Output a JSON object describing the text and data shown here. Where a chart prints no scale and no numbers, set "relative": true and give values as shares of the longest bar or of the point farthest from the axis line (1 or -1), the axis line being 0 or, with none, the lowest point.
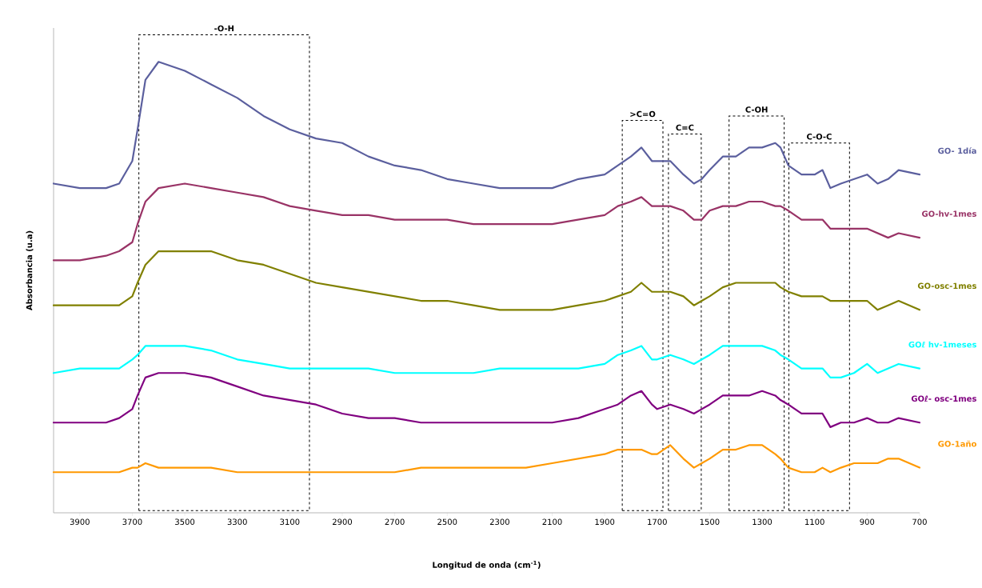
{
  "chart_data": {
    "type": "line",
    "xlabel": "Longitud de onda (cm$^{-1}$)",
    "ylabel": "Absorbancia (u.a)",
    "relative": true,
    "xlim": [
      4000,
      700
    ],
    "xticks": [
      3900,
      3700,
      3500,
      3300,
      3100,
      2900,
      2700,
      2500,
      2300,
      2100,
      1900,
      1700,
      1500,
      1300,
      1100,
      900,
      700
    ],
    "tick_labels": "x",
    "x": [
      4000,
      3900,
      3800,
      3750,
      3700,
      3680,
      3650,
      3600,
      3500,
      3400,
      3300,
      3200,
      3100,
      3000,
      2900,
      2800,
      2700,
      2600,
      2500,
      2400,
      2300,
      2200,
      2100,
      2000,
      1900,
      1850,
      1800,
      1760,
      1720,
      1700,
      1650,
      1600,
      1560,
      1530,
      1500,
      1450,
      1400,
      1350,
      1300,
      1250,
      1230,
      1200,
      1150,
      1100,
      1070,
      1040,
      1000,
      950,
      900,
      860,
      820,
      780,
      700
    ],
    "series": [
      {
        "name": "GO- 1día",
        "color": "#5b5f9e",
        "values": [
          0.73,
          0.72,
          0.72,
          0.73,
          0.78,
          0.85,
          0.96,
          1.0,
          0.98,
          0.95,
          0.92,
          0.88,
          0.85,
          0.83,
          0.82,
          0.79,
          0.77,
          0.76,
          0.74,
          0.73,
          0.72,
          0.72,
          0.72,
          0.74,
          0.75,
          0.77,
          0.79,
          0.81,
          0.78,
          0.78,
          0.78,
          0.75,
          0.73,
          0.74,
          0.76,
          0.79,
          0.79,
          0.81,
          0.81,
          0.82,
          0.81,
          0.77,
          0.75,
          0.75,
          0.76,
          0.72,
          0.73,
          0.74,
          0.75,
          0.73,
          0.74,
          0.76,
          0.75
        ]
      },
      {
        "name": "GO-hv-1mes",
        "color": "#993366",
        "values": [
          0.56,
          0.56,
          0.57,
          0.58,
          0.6,
          0.64,
          0.69,
          0.72,
          0.73,
          0.72,
          0.71,
          0.7,
          0.68,
          0.67,
          0.66,
          0.66,
          0.65,
          0.65,
          0.65,
          0.64,
          0.64,
          0.64,
          0.64,
          0.65,
          0.66,
          0.68,
          0.69,
          0.7,
          0.68,
          0.68,
          0.68,
          0.67,
          0.65,
          0.65,
          0.67,
          0.68,
          0.68,
          0.69,
          0.69,
          0.68,
          0.68,
          0.67,
          0.65,
          0.65,
          0.65,
          0.63,
          0.63,
          0.63,
          0.63,
          0.62,
          0.61,
          0.62,
          0.61
        ]
      },
      {
        "name": "GO-osc-1mes",
        "color": "#808000",
        "values": [
          0.46,
          0.46,
          0.46,
          0.46,
          0.48,
          0.51,
          0.55,
          0.58,
          0.58,
          0.58,
          0.56,
          0.55,
          0.53,
          0.51,
          0.5,
          0.49,
          0.48,
          0.47,
          0.47,
          0.46,
          0.45,
          0.45,
          0.45,
          0.46,
          0.47,
          0.48,
          0.49,
          0.51,
          0.49,
          0.49,
          0.49,
          0.48,
          0.46,
          0.47,
          0.48,
          0.5,
          0.51,
          0.51,
          0.51,
          0.51,
          0.5,
          0.49,
          0.48,
          0.48,
          0.48,
          0.47,
          0.47,
          0.47,
          0.47,
          0.45,
          0.46,
          0.47,
          0.45
        ]
      },
      {
        "name": "GOℓ hv-1meses",
        "color": "#00ffff",
        "values": [
          0.31,
          0.32,
          0.32,
          0.32,
          0.34,
          0.35,
          0.37,
          0.37,
          0.37,
          0.36,
          0.34,
          0.33,
          0.32,
          0.32,
          0.32,
          0.32,
          0.31,
          0.31,
          0.31,
          0.31,
          0.32,
          0.32,
          0.32,
          0.32,
          0.33,
          0.35,
          0.36,
          0.37,
          0.34,
          0.34,
          0.35,
          0.34,
          0.33,
          0.34,
          0.35,
          0.37,
          0.37,
          0.37,
          0.37,
          0.36,
          0.35,
          0.34,
          0.32,
          0.32,
          0.32,
          0.3,
          0.3,
          0.31,
          0.33,
          0.31,
          0.32,
          0.33,
          0.32
        ]
      },
      {
        "name": "GOℓ- osc-1mes",
        "color": "#800080",
        "values": [
          0.2,
          0.2,
          0.2,
          0.21,
          0.23,
          0.26,
          0.3,
          0.31,
          0.31,
          0.3,
          0.28,
          0.26,
          0.25,
          0.24,
          0.22,
          0.21,
          0.21,
          0.2,
          0.2,
          0.2,
          0.2,
          0.2,
          0.2,
          0.21,
          0.23,
          0.24,
          0.26,
          0.27,
          0.24,
          0.23,
          0.24,
          0.23,
          0.22,
          0.23,
          0.24,
          0.26,
          0.26,
          0.26,
          0.27,
          0.26,
          0.25,
          0.24,
          0.22,
          0.22,
          0.22,
          0.19,
          0.2,
          0.2,
          0.21,
          0.2,
          0.2,
          0.21,
          0.2
        ]
      },
      {
        "name": "GO-1año",
        "color": "#ff9900",
        "values": [
          0.09,
          0.09,
          0.09,
          0.09,
          0.1,
          0.1,
          0.11,
          0.1,
          0.1,
          0.1,
          0.09,
          0.09,
          0.09,
          0.09,
          0.09,
          0.09,
          0.09,
          0.1,
          0.1,
          0.1,
          0.1,
          0.1,
          0.11,
          0.12,
          0.13,
          0.14,
          0.14,
          0.14,
          0.13,
          0.13,
          0.15,
          0.12,
          0.1,
          0.11,
          0.12,
          0.14,
          0.14,
          0.15,
          0.15,
          0.13,
          0.12,
          0.1,
          0.09,
          0.09,
          0.1,
          0.09,
          0.1,
          0.11,
          0.11,
          0.11,
          0.12,
          0.12,
          0.1
        ]
      }
    ],
    "bands": [
      {
        "axis": "x",
        "from": 3675,
        "to": 3025,
        "label": "-O-H",
        "color": "#000000"
      },
      {
        "axis": "x",
        "from": 1833,
        "to": 1678,
        "label": ">C=O",
        "color": "#000000"
      },
      {
        "axis": "x",
        "from": 1657,
        "to": 1532,
        "label": "C=C",
        "color": "#000000"
      },
      {
        "axis": "x",
        "from": 1426,
        "to": 1216,
        "label": "C-OH",
        "color": "#000000"
      },
      {
        "axis": "x",
        "from": 1198,
        "to": 967,
        "label": "C-O-C",
        "color": "#000000"
      }
    ]
  }
}
